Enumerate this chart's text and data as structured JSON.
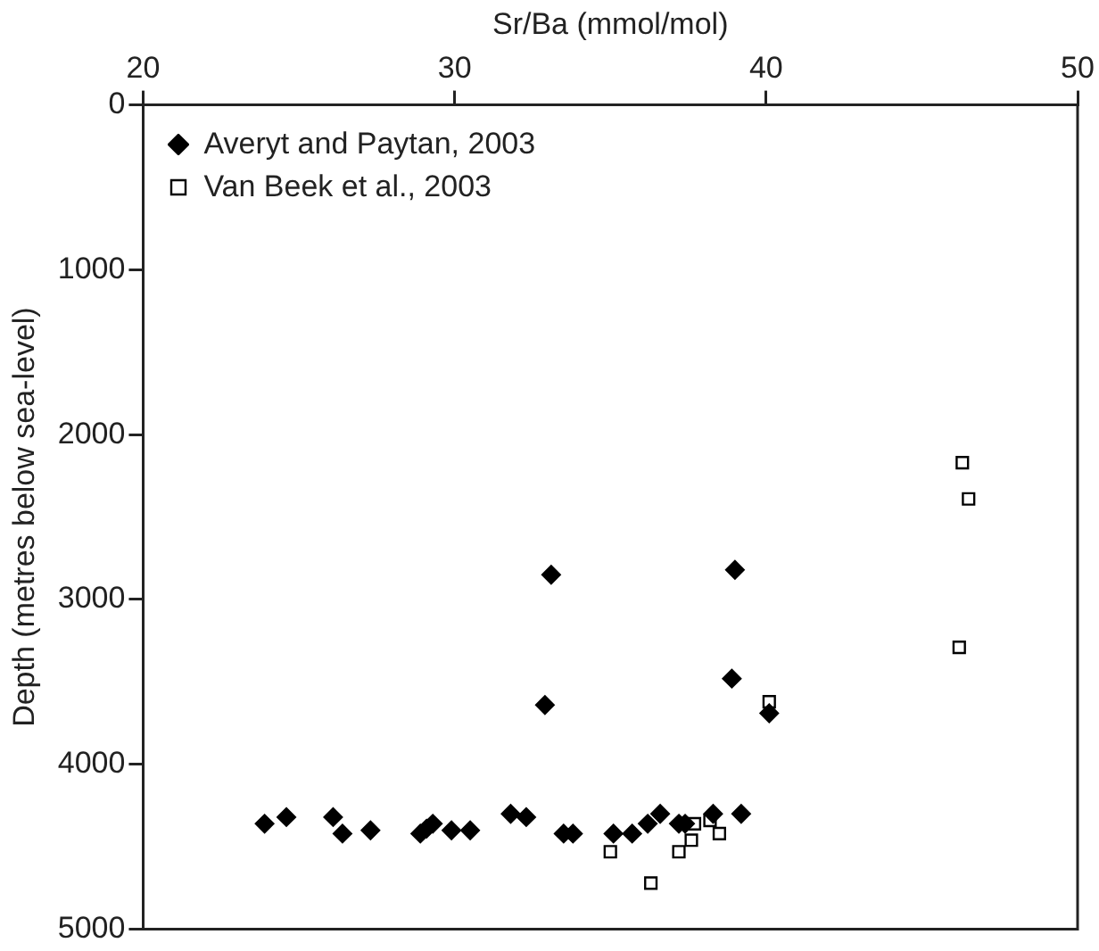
{
  "chart_data": {
    "type": "scatter",
    "xlabel": "Sr/Ba (mmol/mol)",
    "ylabel": "Depth (metres below sea-level)",
    "xlim": [
      20,
      50
    ],
    "xticks": [
      20,
      30,
      40,
      50
    ],
    "ylim": [
      5000,
      0
    ],
    "yticks": [
      0,
      1000,
      2000,
      3000,
      4000,
      5000
    ],
    "grid": false,
    "legend": "top left",
    "series": [
      {
        "name": "Averyt and Paytan, 2003",
        "color": "#000000",
        "marker": "diamond",
        "x": [
          23.9,
          24.6,
          26.1,
          26.4,
          27.3,
          28.9,
          29.1,
          29.3,
          29.9,
          30.5,
          31.8,
          32.3,
          33.1,
          32.9,
          33.5,
          33.8,
          35.1,
          35.7,
          36.2,
          36.6,
          37.2,
          37.4,
          38.3,
          39.0,
          38.9,
          39.2,
          40.1
        ],
        "values": [
          4360,
          4320,
          4320,
          4420,
          4400,
          4420,
          4390,
          4360,
          4400,
          4400,
          4300,
          4320,
          2850,
          3640,
          4420,
          4420,
          4420,
          4420,
          4360,
          4300,
          4360,
          4360,
          4300,
          2820,
          3480,
          4300,
          3690
        ]
      },
      {
        "name": "Van Beek et al., 2003",
        "color": "#000000",
        "marker": "square",
        "x": [
          35.0,
          36.3,
          37.2,
          37.6,
          37.7,
          38.2,
          38.5,
          40.1,
          46.3,
          46.5,
          46.2
        ],
        "values": [
          4530,
          4720,
          4530,
          4460,
          4360,
          4340,
          4420,
          3620,
          2170,
          2390,
          3290
        ]
      }
    ]
  }
}
